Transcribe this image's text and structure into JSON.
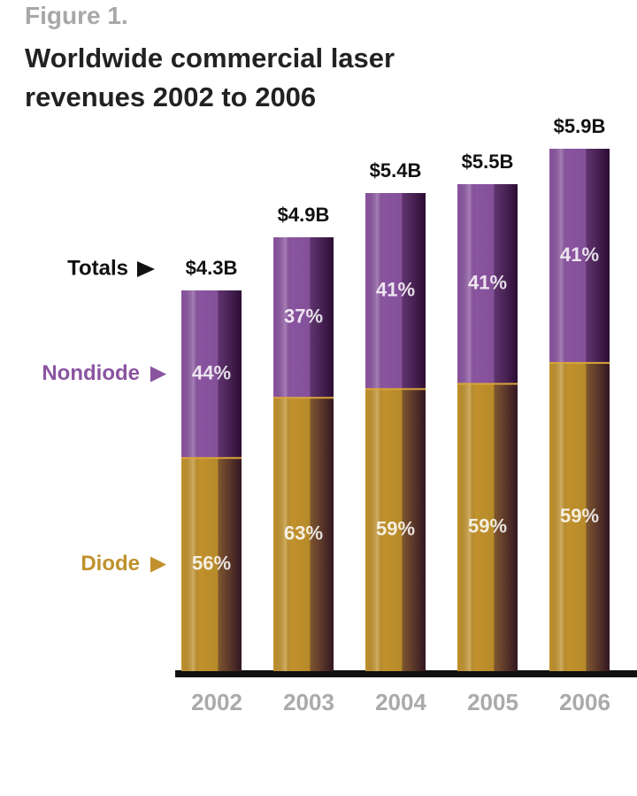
{
  "chart_data": {
    "type": "stacked_bar",
    "figure_label": "Figure 1.",
    "title": "Worldwide commercial laser revenues 2002 to 2006",
    "categories": [
      "2002",
      "2003",
      "2004",
      "2005",
      "2006"
    ],
    "totals": {
      "name": "Totals",
      "values": [
        4.3,
        4.9,
        5.4,
        5.5,
        5.9
      ],
      "value_labels": [
        "$4.3B",
        "$4.9B",
        "$5.4B",
        "$5.5B",
        "$5.9B"
      ]
    },
    "series": [
      {
        "name": "Diode",
        "color": "#c0912c",
        "values": [
          56,
          63,
          59,
          59,
          59
        ],
        "value_labels": [
          "56%",
          "63%",
          "59%",
          "59%",
          "59%"
        ]
      },
      {
        "name": "Nondiode",
        "color": "#8a54a0",
        "values": [
          44,
          37,
          41,
          41,
          41
        ],
        "value_labels": [
          "44%",
          "37%",
          "41%",
          "41%",
          "41%"
        ]
      }
    ]
  }
}
